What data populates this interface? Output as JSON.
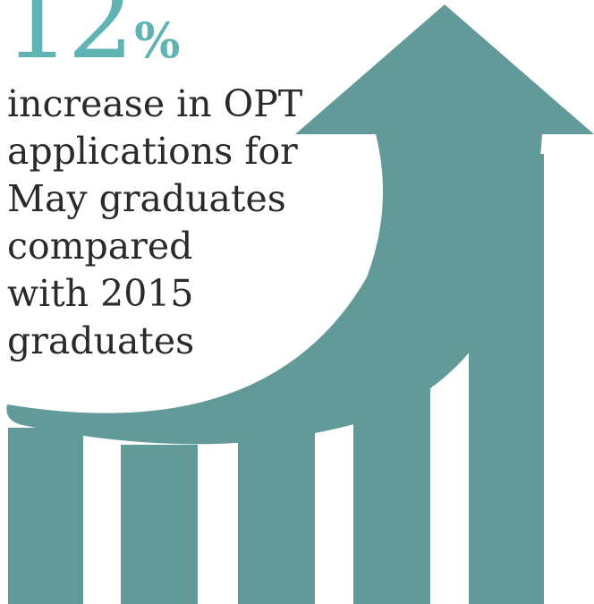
{
  "stat": {
    "number": "12",
    "unit": "%"
  },
  "caption": {
    "lines": [
      "increase in OPT",
      "applications for",
      "May graduates",
      "compared",
      "with 2015",
      "graduates"
    ]
  },
  "colors": {
    "accent": "#5fb3b3",
    "bars": "#629999",
    "text": "#2a2a2a",
    "background": "#ffffff"
  },
  "icon": "growth-arrow-over-bars-icon"
}
